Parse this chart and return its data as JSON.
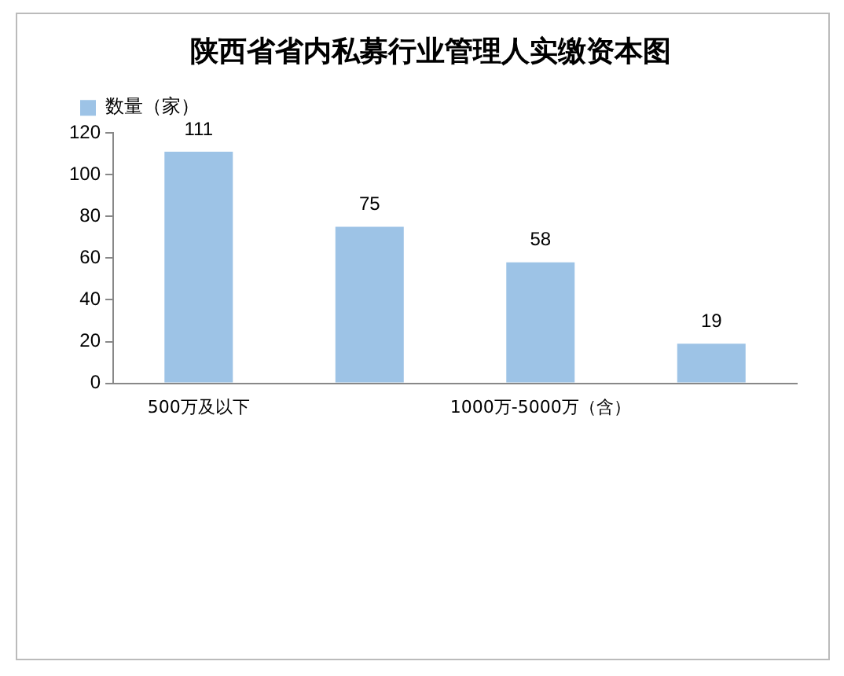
{
  "chart_data": {
    "type": "bar",
    "title": "陕西省省内私募行业管理人实缴资本图",
    "categories": [
      "500万及以下",
      null,
      "1000万-5000万（含）",
      null
    ],
    "series": [
      {
        "name": "数量（家）",
        "color": "#9dc3e6",
        "values": [
          111,
          75,
          58,
          19
        ]
      }
    ],
    "ylim": [
      0,
      120
    ],
    "yticks": [
      0,
      20,
      40,
      60,
      80,
      100,
      120
    ],
    "grid": false,
    "legend": "top left",
    "data_labels": true
  }
}
